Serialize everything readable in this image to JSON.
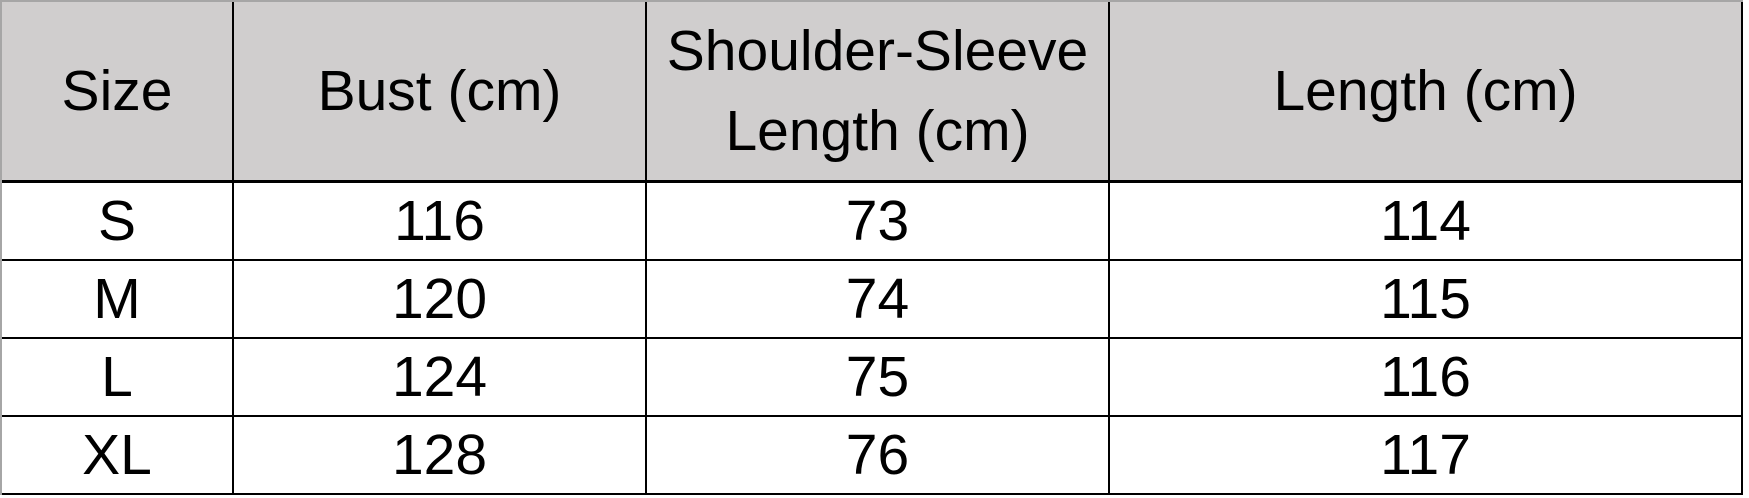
{
  "table": {
    "headers": [
      "Size",
      "Bust (cm)",
      "Shoulder-Sleeve Length (cm)",
      "Length (cm)"
    ],
    "rows": [
      [
        "S",
        "116",
        "73",
        "114"
      ],
      [
        "M",
        "120",
        "74",
        "115"
      ],
      [
        "L",
        "124",
        "75",
        "116"
      ],
      [
        "XL",
        "128",
        "76",
        "117"
      ]
    ]
  },
  "colors": {
    "header_background": "#d0cece",
    "grid_border": "#000000",
    "outer_edge_border": "#a6a6a6",
    "text": "#000000"
  },
  "chart_data": {
    "type": "table",
    "columns": [
      "Size",
      "Bust (cm)",
      "Shoulder-Sleeve Length (cm)",
      "Length (cm)"
    ],
    "rows": [
      [
        "S",
        116,
        73,
        114
      ],
      [
        "M",
        120,
        74,
        115
      ],
      [
        "L",
        124,
        75,
        116
      ],
      [
        "XL",
        128,
        76,
        117
      ]
    ]
  }
}
